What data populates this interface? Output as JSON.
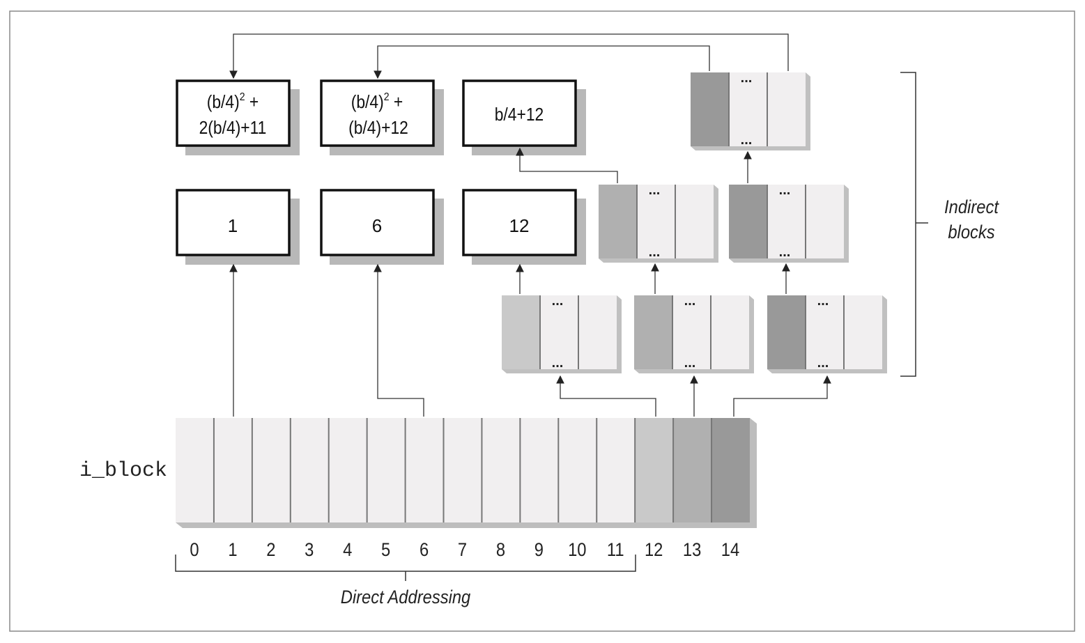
{
  "inode_field_label": "i_block",
  "index_labels": [
    "0",
    "1",
    "2",
    "3",
    "4",
    "5",
    "6",
    "7",
    "8",
    "9",
    "10",
    "11",
    "12",
    "13",
    "14"
  ],
  "direct_label": "Direct Addressing",
  "indirect_label": [
    "Indirect",
    "blocks"
  ],
  "data_blocks": {
    "b1": "1",
    "b6": "6",
    "b12": "12",
    "single": "b/4+12",
    "double": [
      "(b/4)",
      "2",
      " +",
      "(b/4)+12"
    ],
    "triple": [
      "(b/4)",
      "2",
      " +",
      "2(b/4)+11"
    ]
  },
  "ellipsis": "...",
  "colors": {
    "slot_light": "#f1eff0",
    "slot_12": "#c9c9c9",
    "slot_13": "#b0b0b0",
    "slot_14": "#999999",
    "shadow": "#b8b8b8",
    "line": "#333333"
  }
}
